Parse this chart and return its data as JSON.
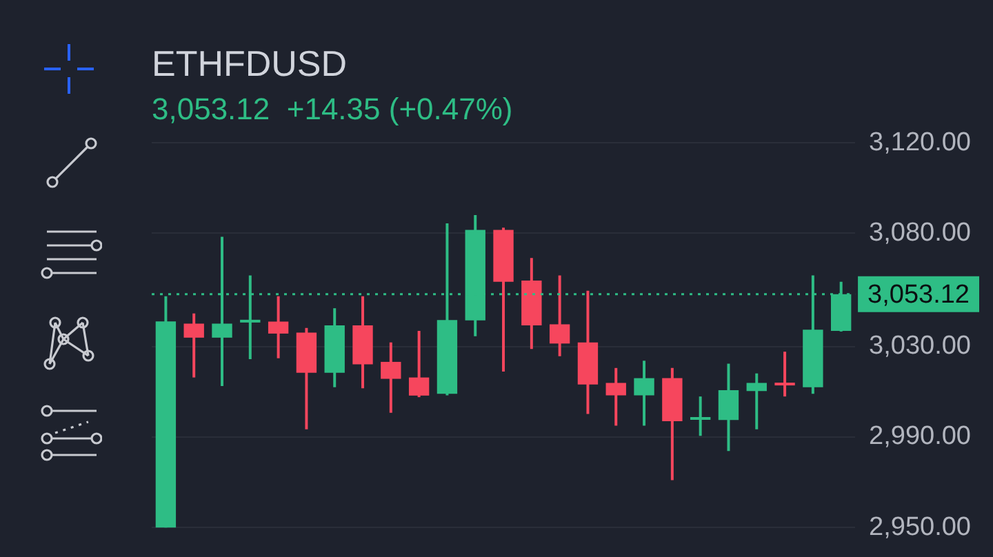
{
  "chart_data": {
    "type": "candlestick",
    "title": "ETHFDUSD",
    "subtitle": "3,053.12  +14.35 (+0.47%)",
    "categories": [
      null,
      null,
      null,
      null,
      null,
      null,
      null,
      null,
      null,
      null,
      null,
      null,
      null,
      null,
      null,
      null,
      null,
      null,
      null,
      null,
      null,
      null,
      null,
      null,
      null
    ],
    "ohlc": [
      [
        2950,
        3052.2,
        2950,
        3041.1
      ],
      [
        3040.1,
        3044.6,
        3016.3,
        3033.9
      ],
      [
        3033.9,
        3078.5,
        3012.5,
        3040.1
      ],
      [
        3040.8,
        3061.4,
        3024.4,
        3041.2
      ],
      [
        3041,
        3052.2,
        3024.8,
        3035.7
      ],
      [
        3036.1,
        3038.2,
        2993.4,
        3018.4
      ],
      [
        3018.4,
        3046.9,
        3012,
        3039.3
      ],
      [
        3039.3,
        3052.2,
        3011.5,
        3022.1
      ],
      [
        3023.2,
        3031.8,
        3000.7,
        3015.7
      ],
      [
        3016.3,
        3036.9,
        3007.6,
        3008.3
      ],
      [
        3009.1,
        3084.4,
        3008.4,
        3041.7
      ],
      [
        3041.5,
        3088.1,
        3034.5,
        3081.5
      ],
      [
        3081.5,
        3082.5,
        3018.9,
        3058.6
      ],
      [
        3059.1,
        3069.1,
        3028.9,
        3039.3
      ],
      [
        3039.8,
        3061.4,
        3025.7,
        3031.3
      ],
      [
        3031.8,
        3054.6,
        3000.2,
        3013.2
      ],
      [
        3013.9,
        3020.5,
        2995,
        3008.4
      ],
      [
        3008.4,
        3023.7,
        2995,
        3016
      ],
      [
        3016,
        3020.5,
        2970.9,
        2997
      ],
      [
        2997.8,
        3007.9,
        2990.5,
        2998.2
      ],
      [
        2997.5,
        3022.4,
        2983.8,
        3010.7
      ],
      [
        3010.3,
        3018.1,
        2993.4,
        3013.9
      ],
      [
        3013.4,
        3027.7,
        3007.9,
        3012.8
      ],
      [
        3012,
        3061.4,
        3009.1,
        3037.4
      ],
      [
        3036.9,
        3058.6,
        3036.6,
        3053.1
      ]
    ],
    "colors": [
      "#2ebd85",
      "#f6465d",
      "#2ebd85",
      "#2ebd85",
      "#f6465d",
      "#f6465d",
      "#2ebd85",
      "#f6465d",
      "#f6465d",
      "#f6465d",
      "#2ebd85",
      "#2ebd85",
      "#f6465d",
      "#f6465d",
      "#f6465d",
      "#f6465d",
      "#f6465d",
      "#2ebd85",
      "#f6465d",
      "#2ebd85",
      "#2ebd85",
      "#2ebd85",
      "#f6465d",
      "#2ebd85",
      "#2ebd85"
    ],
    "ylim": [
      2950,
      3120
    ],
    "yticks": [
      {
        "value": 2950,
        "label": "2,950.00"
      },
      {
        "value": 2990,
        "label": "2,990.00"
      },
      {
        "value": 3030,
        "label": "3,030.00"
      },
      {
        "value": 3080,
        "label": "3,080.00"
      },
      {
        "value": 3120,
        "label": "3,120.00"
      }
    ],
    "tick_labels": "y",
    "grid": "y",
    "legend": false,
    "ref_lines": [
      {
        "axis": "y",
        "value": 3053.12,
        "label": "3,053.12",
        "color": "#2ebd85",
        "line_style": "dotted"
      }
    ]
  }
}
